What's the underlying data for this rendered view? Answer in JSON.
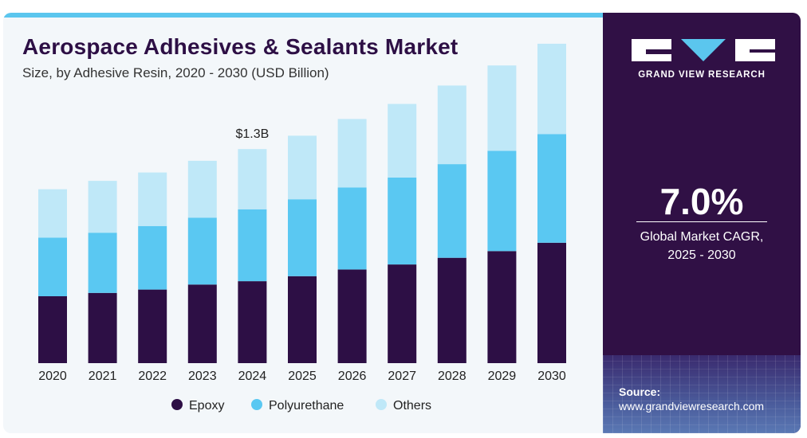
{
  "header": {
    "title": "Aerospace Adhesives & Sealants Market",
    "subtitle": "Size, by Adhesive Resin, 2020 - 2030 (USD Billion)"
  },
  "brand": {
    "name": "GRAND VIEW RESEARCH"
  },
  "highlight": {
    "value": "7.0%",
    "label_line1": "Global Market CAGR,",
    "label_line2": "2025 - 2030"
  },
  "source": {
    "label": "Source:",
    "url": "www.grandviewresearch.com"
  },
  "colors": {
    "accent_bar": "#5bc6ee",
    "panel": "#301045",
    "title": "#2d0f45"
  },
  "chart_data": {
    "type": "bar",
    "stacked": true,
    "categories": [
      "2020",
      "2021",
      "2022",
      "2023",
      "2024",
      "2025",
      "2026",
      "2027",
      "2028",
      "2029",
      "2030"
    ],
    "series": [
      {
        "name": "Epoxy",
        "color": "#2d0f45",
        "values": [
          0.4,
          0.42,
          0.44,
          0.47,
          0.49,
          0.52,
          0.56,
          0.59,
          0.63,
          0.67,
          0.72
        ]
      },
      {
        "name": "Polyurethane",
        "color": "#5ac8f2",
        "values": [
          0.35,
          0.36,
          0.38,
          0.4,
          0.43,
          0.46,
          0.49,
          0.52,
          0.56,
          0.6,
          0.65
        ]
      },
      {
        "name": "Others",
        "color": "#bfe8f8",
        "values": [
          0.29,
          0.31,
          0.32,
          0.34,
          0.36,
          0.38,
          0.41,
          0.44,
          0.47,
          0.51,
          0.54
        ]
      }
    ],
    "annotations": [
      {
        "category": "2024",
        "text": "$1.3B"
      }
    ],
    "ylim": [
      0,
      2.0
    ],
    "grid": false,
    "legend_position": "bottom"
  }
}
